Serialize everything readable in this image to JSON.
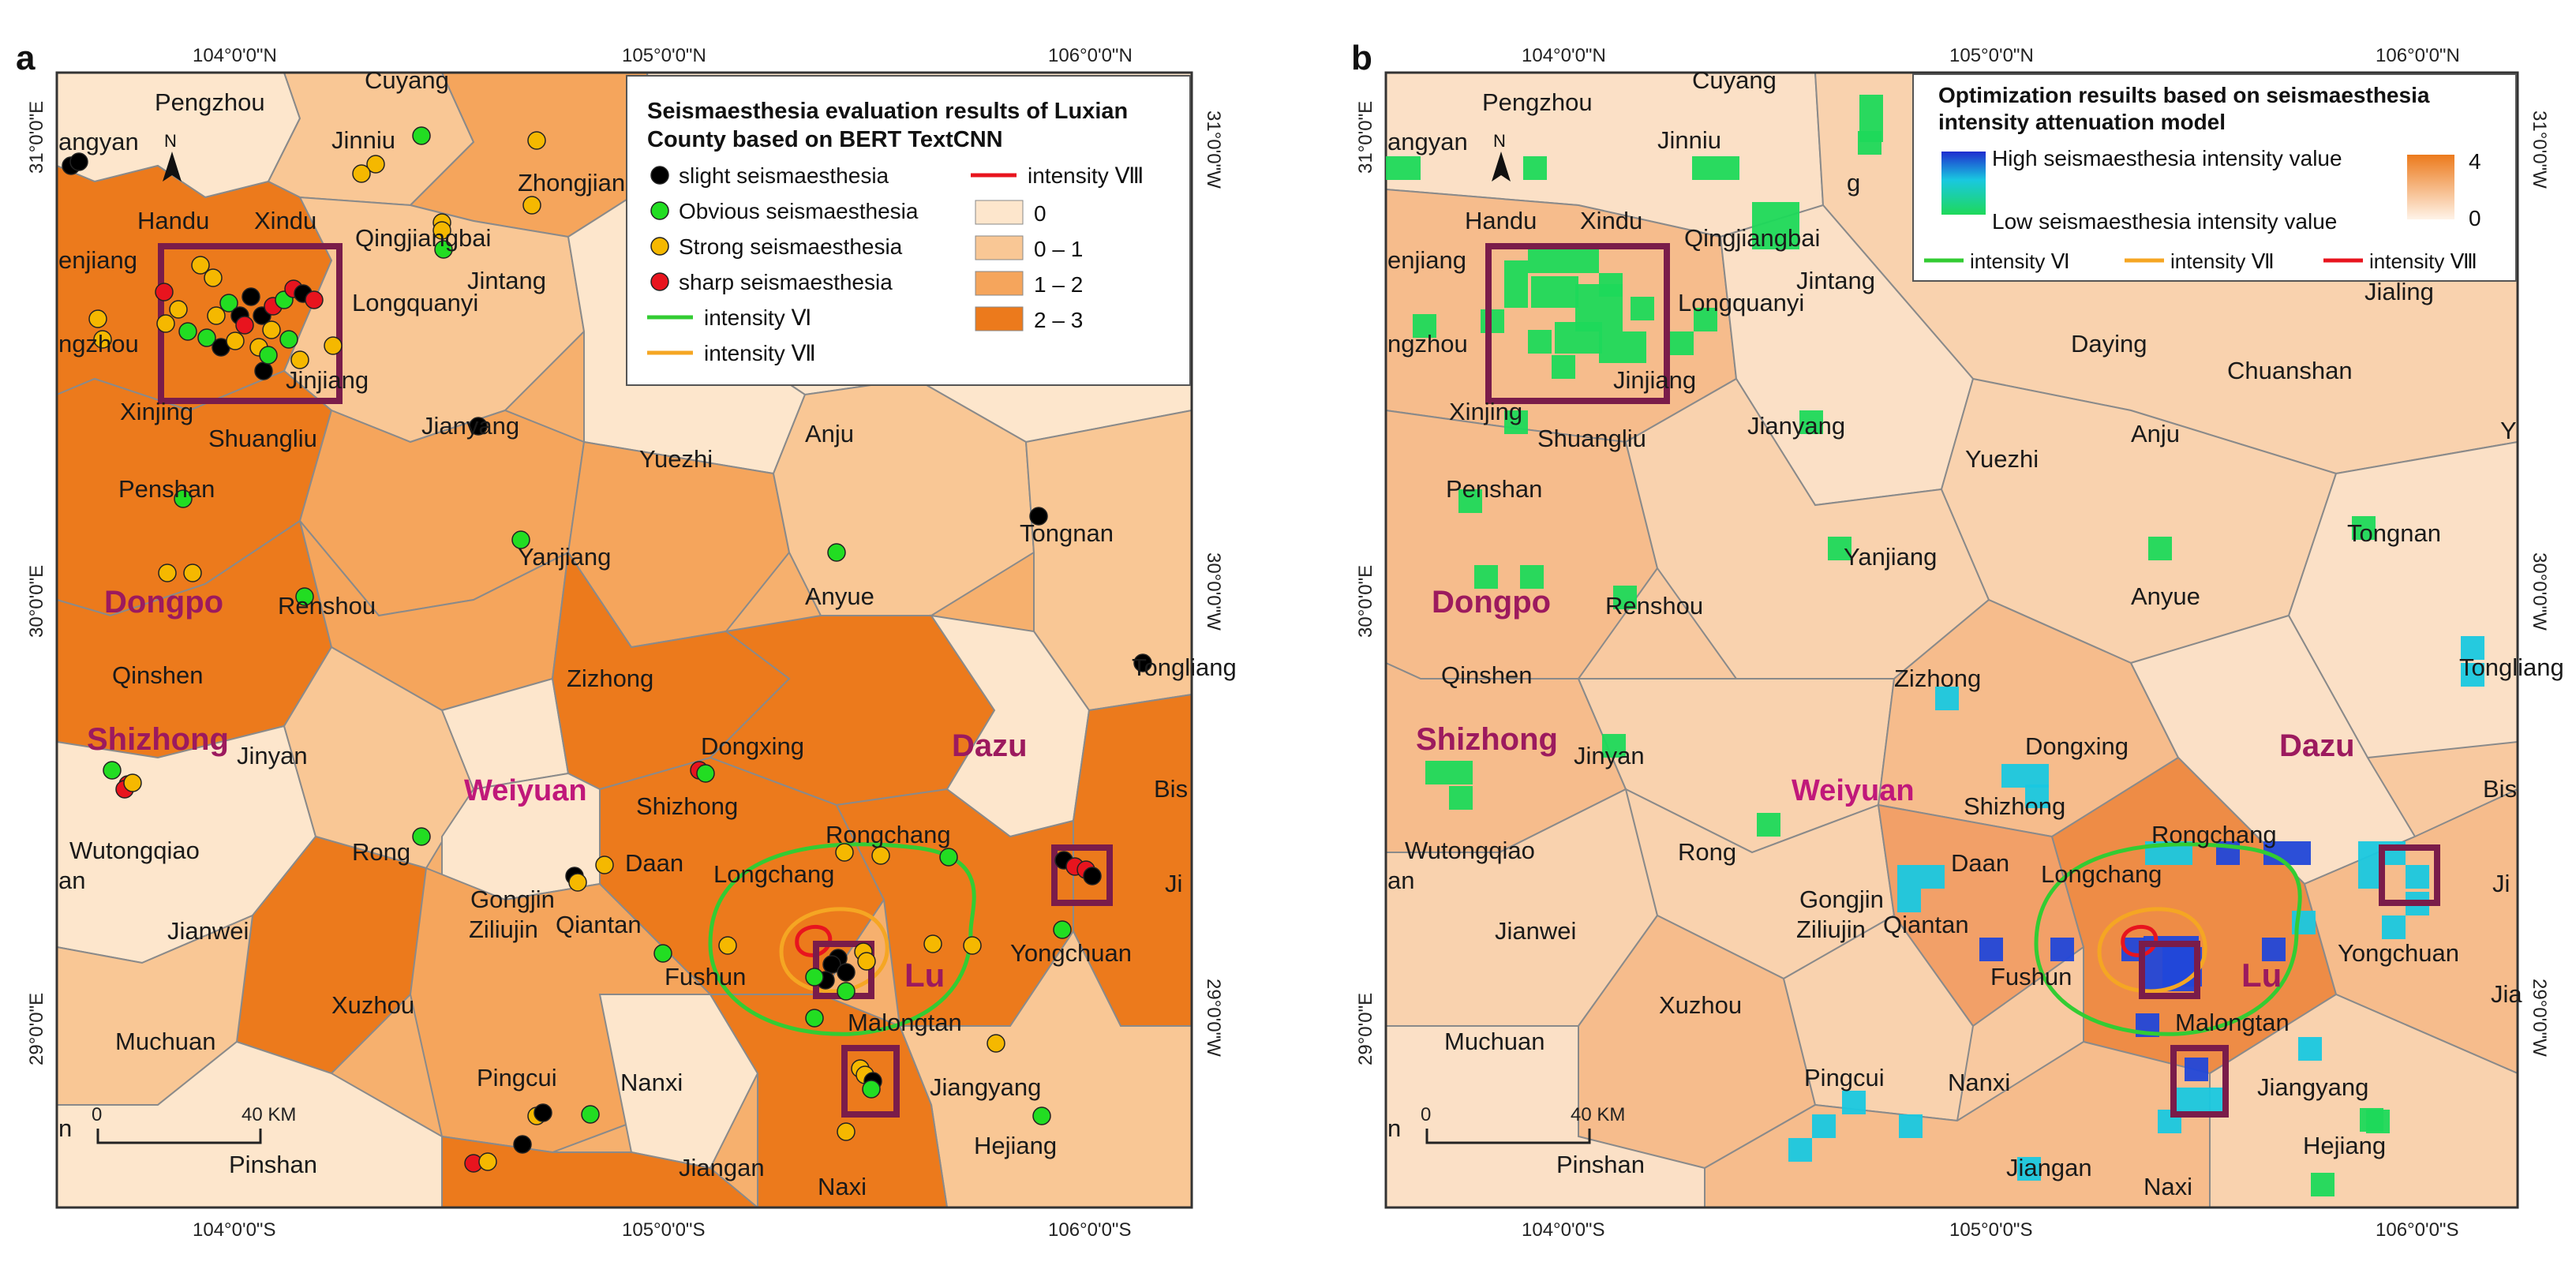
{
  "figure": {
    "panels": [
      {
        "id": "a",
        "label": "a",
        "graticule": {
          "top": [
            "104°0'0\"N",
            "105°0'0\"N",
            "106°0'0\"N"
          ],
          "bottom": [
            "104°0'0\"S",
            "105°0'0\"S",
            "106°0'0\"S"
          ],
          "left": [
            "31°0'0\"E",
            "30°0'0\"E",
            "29°0'0\"E"
          ],
          "right": [
            "31°0'0\"W",
            "30°0'0\"W",
            "29°0'0\"W"
          ]
        },
        "scale_bar": {
          "start": "0",
          "end": "40 KM"
        },
        "north_arrow": "N",
        "legend": {
          "title_line1": "Seismaesthesia evaluation results of Luxian",
          "title_line2": "County based on BERT TextCNN",
          "point_items": [
            {
              "label": "slight seismaesthesia",
              "color": "#000000"
            },
            {
              "label": "Obvious seismaesthesia",
              "color": "#22dd22"
            },
            {
              "label": "Strong seismaesthesia",
              "color": "#f5b800"
            },
            {
              "label": "sharp seismaesthesia",
              "color": "#e8141e"
            }
          ],
          "line_items": [
            {
              "label": "intensity Ⅷ",
              "color": "#e8141e"
            },
            {
              "label": "intensity Ⅵ",
              "color": "#33cc33"
            },
            {
              "label": "intensity Ⅶ",
              "color": "#f5a623"
            }
          ],
          "class_items": [
            {
              "label": "0",
              "color": "#fde6cc"
            },
            {
              "label": "0 – 1",
              "color": "#f9c795"
            },
            {
              "label": "1 – 2",
              "color": "#f5a55c"
            },
            {
              "label": "2 – 3",
              "color": "#ec7a1c"
            }
          ]
        }
      },
      {
        "id": "b",
        "label": "b",
        "graticule": {
          "top": [
            "104°0'0\"N",
            "105°0'0\"N",
            "106°0'0\"N"
          ],
          "bottom": [
            "104°0'0\"S",
            "105°0'0\"S",
            "106°0'0\"S"
          ],
          "left": [
            "31°0'0\"E",
            "30°0'0\"E",
            "29°0'0\"E"
          ],
          "right": [
            "31°0'0\"W",
            "30°0'0\"W",
            "29°0'0\"W"
          ]
        },
        "scale_bar": {
          "start": "0",
          "end": "40 KM"
        },
        "north_arrow": "N",
        "legend": {
          "title_line1": "Optimization resuilts based on seismaesthesia",
          "title_line2": "intensity attenuation model",
          "high_label": "High seismaesthesia intensity value",
          "low_label": "Low seismaesthesia intensity value",
          "ramp_max": "4",
          "ramp_min": "0",
          "line_items": [
            {
              "label": "intensity Ⅵ",
              "color": "#33cc33"
            },
            {
              "label": "intensity Ⅶ",
              "color": "#f5a623"
            },
            {
              "label": "intensity Ⅷ",
              "color": "#e8141e"
            }
          ]
        }
      }
    ],
    "places": [
      "Pengzhou",
      "Cuyang",
      "Jinniu",
      "Zhongjiang",
      "angyan",
      "Handu",
      "Xindu",
      "Qingjiangbai",
      "enjiang",
      "Jintang",
      "Longquanyi",
      "ngzhou",
      "Xinjing",
      "Jinjiang",
      "Shuangliu",
      "Jianyang",
      "Yuezhi",
      "Anju",
      "Penshan",
      "Tongnan",
      "Yanjiang",
      "Dongpo",
      "Renshou",
      "Anyue",
      "Qinshen",
      "Zizhong",
      "Tongliang",
      "Shizhong",
      "Jinyan",
      "Dongxing",
      "Dazu",
      "Weiyuan",
      "Shizhong",
      "Bis",
      "Wutongqiao",
      "Rong",
      "Rongchang",
      "Daan",
      "Longchang",
      "an",
      "Gongjin",
      "Ziliujin",
      "Qiantan",
      "Jianwei",
      "Fushun",
      "Lu",
      "Yongchuan",
      "Ji",
      "Xuzhou",
      "Malongtan",
      "Muchuan",
      "Pingcui",
      "Nanxi",
      "Jiangyang",
      "Hejiang",
      "n",
      "Pinshan",
      "Jiangan",
      "Naxi",
      "Jialing",
      "Daying",
      "Chuanshan",
      "Jia",
      "Zhong",
      "Ji",
      "Y",
      "g"
    ]
  }
}
